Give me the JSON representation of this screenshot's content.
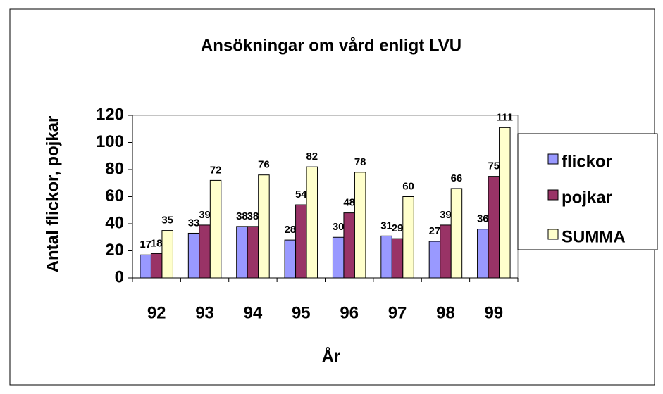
{
  "chart_data": {
    "type": "bar",
    "title": "Ansökningar om vård enligt LVU",
    "x_label": "År",
    "y_label": "Antal flickor, pojkar",
    "categories": [
      "92",
      "93",
      "94",
      "95",
      "96",
      "97",
      "98",
      "99"
    ],
    "series": [
      {
        "name": "flickor",
        "color": "#9999ff",
        "values": [
          17,
          33,
          38,
          28,
          30,
          31,
          27,
          36
        ]
      },
      {
        "name": "pojkar",
        "color": "#993366",
        "values": [
          18,
          39,
          38,
          54,
          48,
          29,
          39,
          75
        ]
      },
      {
        "name": "SUMMA",
        "color": "#ffffcc",
        "values": [
          35,
          72,
          76,
          82,
          78,
          60,
          66,
          111
        ]
      }
    ],
    "ylim": [
      0,
      120
    ],
    "yticks": [
      0,
      20,
      40,
      60,
      80,
      100,
      120
    ],
    "grid": false,
    "legend": "right"
  }
}
